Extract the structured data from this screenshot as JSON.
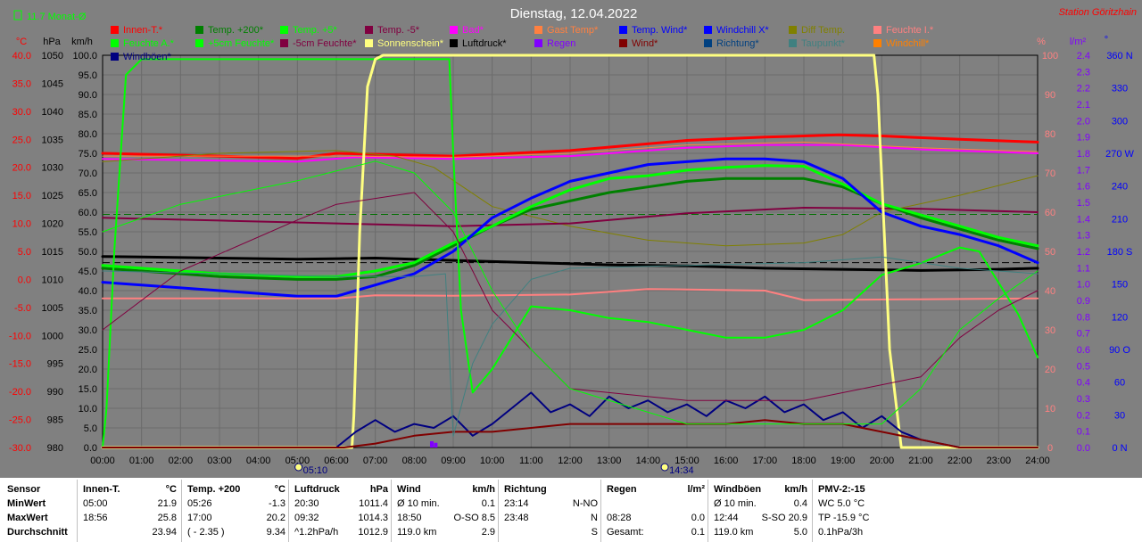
{
  "chart_data": {
    "type": "line",
    "title": "Dienstag, 12.04.2022",
    "station": "Station Göritzhain",
    "month_avg": "11.7 Monat-Ø",
    "axes": {
      "temp": {
        "label": "°C",
        "ticks": [
          "40.0",
          "35.0",
          "30.0",
          "25.0",
          "20.0",
          "15.0",
          "10.0",
          "5.0",
          "0.0",
          "-5.0",
          "-10.0",
          "-15.0",
          "-20.0",
          "-25.0",
          "-30.0"
        ],
        "range": [
          -30,
          40
        ]
      },
      "pressure": {
        "label": "hPa",
        "ticks": [
          "1050",
          "1045",
          "1040",
          "1035",
          "1030",
          "1025",
          "1020",
          "1015",
          "1010",
          "1005",
          "1000",
          "995",
          "990",
          "985",
          "980"
        ],
        "range": [
          980,
          1050
        ]
      },
      "wind": {
        "label": "km/h",
        "ticks": [
          "100.0",
          "95.0",
          "90.0",
          "85.0",
          "80.0",
          "75.0",
          "70.0",
          "65.0",
          "60.0",
          "55.0",
          "50.0",
          "45.0",
          "40.0",
          "35.0",
          "30.0",
          "25.0",
          "20.0",
          "15.0",
          "10.0",
          "5.0",
          "0.0"
        ],
        "range": [
          0,
          100
        ]
      },
      "humidity": {
        "label": "%",
        "ticks": [
          "100",
          "90",
          "80",
          "70",
          "60",
          "50",
          "40",
          "30",
          "20",
          "10",
          "0"
        ],
        "range": [
          0,
          100
        ]
      },
      "rain": {
        "label": "l/m²",
        "ticks": [
          "2.4",
          "2.3",
          "2.2",
          "2.1",
          "2.0",
          "1.9",
          "1.8",
          "1.7",
          "1.6",
          "1.5",
          "1.4",
          "1.3",
          "1.2",
          "1.1",
          "1.0",
          "0.9",
          "0.8",
          "0.7",
          "0.6",
          "0.5",
          "0.4",
          "0.3",
          "0.2",
          "0.1",
          "0.0"
        ],
        "range": [
          0,
          2.5
        ]
      },
      "direction": {
        "label": "°",
        "ticks": [
          "360 N",
          "330",
          "300",
          "270 W",
          "240",
          "210",
          "180 S",
          "150",
          "120",
          "90 O",
          "60",
          "30",
          "0 N"
        ],
        "range": [
          0,
          360
        ]
      },
      "time": {
        "ticks": [
          "00:00",
          "01:00",
          "02:00",
          "03:00",
          "04:00",
          "05:00",
          "06:00",
          "07:00",
          "08:00",
          "09:00",
          "10:00",
          "11:00",
          "12:00",
          "13:00",
          "14:00",
          "15:00",
          "16:00",
          "17:00",
          "18:00",
          "19:00",
          "20:00",
          "21:00",
          "22:00",
          "23:00",
          "24:00"
        ],
        "range": [
          0,
          24
        ]
      }
    },
    "sunrise": "05:10",
    "sunset": "14:34",
    "legend": [
      {
        "name": "Innen-T.*",
        "color": "#ff0000"
      },
      {
        "name": "Temp. +200*",
        "color": "#008000"
      },
      {
        "name": "Temp. +5*",
        "color": "#00ff00"
      },
      {
        "name": "Temp. -5*",
        "color": "#800040"
      },
      {
        "name": "Bad*",
        "color": "#ff00ff"
      },
      {
        "name": "Gast Temp*",
        "color": "#ff8040"
      },
      {
        "name": "Temp. Wind*",
        "color": "#0000ff"
      },
      {
        "name": "Windchill X*",
        "color": "#0000ff"
      },
      {
        "name": "Diff Temp.",
        "color": "#808000"
      },
      {
        "name": "Feuchte I.*",
        "color": "#ff8080"
      },
      {
        "name": "Feuchte A.*",
        "color": "#00ff00"
      },
      {
        "name": "+5cm Feuchte*",
        "color": "#00ff00"
      },
      {
        "name": "-5cm Feuchte*",
        "color": "#800040"
      },
      {
        "name": "Sonnenschein*",
        "color": "#ffff80"
      },
      {
        "name": "Luftdruck*",
        "color": "#000000"
      },
      {
        "name": "Regen",
        "color": "#8000ff"
      },
      {
        "name": "Wind*",
        "color": "#800000"
      },
      {
        "name": "Richtung*",
        "color": "#004080"
      },
      {
        "name": "Taupunkt*",
        "color": "#408080"
      },
      {
        "name": "Windchill*",
        "color": "#ff8000"
      },
      {
        "name": "Windböen*",
        "color": "#000080"
      }
    ],
    "series": [
      {
        "name": "Innen-T.*",
        "axis": "temp",
        "color": "#ff0000",
        "width": 3,
        "t": [
          0,
          3,
          5,
          6,
          9,
          12,
          15,
          17,
          18.9,
          20,
          22,
          24
        ],
        "y": [
          22.5,
          22.0,
          21.6,
          22.5,
          22.0,
          23.0,
          24.8,
          25.4,
          25.8,
          25.6,
          25.0,
          24.5
        ]
      },
      {
        "name": "Bad*",
        "color": "#ff00ff",
        "axis": "temp",
        "width": 2,
        "t": [
          0,
          5,
          6.5,
          9,
          12,
          15,
          17,
          19,
          21,
          24
        ],
        "y": [
          21.5,
          21.0,
          21.8,
          21.5,
          22.0,
          23.5,
          24.0,
          24.0,
          23.2,
          22.5
        ]
      },
      {
        "name": "Gast Temp*",
        "color": "#ff8040",
        "axis": "temp",
        "width": 1,
        "t": [
          0,
          6,
          9,
          12,
          15,
          18,
          21,
          24
        ],
        "y": [
          22.0,
          22.0,
          21.8,
          22.5,
          24.0,
          24.5,
          23.5,
          22.8
        ]
      },
      {
        "name": "Diff Temp.",
        "color": "#808000",
        "axis": "temp",
        "width": 1,
        "t": [
          0,
          3,
          6,
          7.5,
          8.5,
          10,
          12,
          14,
          16,
          18,
          19,
          20,
          22,
          24
        ],
        "y": [
          21.0,
          22.5,
          23.0,
          22.0,
          20.0,
          13.0,
          9.5,
          7.0,
          6.0,
          6.5,
          8.0,
          12.0,
          15.0,
          18.5
        ]
      },
      {
        "name": "Temp. -5*",
        "color": "#800040",
        "axis": "temp",
        "width": 2,
        "t": [
          0,
          3,
          6,
          9,
          12,
          15,
          18,
          21,
          24
        ],
        "y": [
          11.0,
          10.5,
          10.0,
          9.5,
          10.0,
          11.8,
          12.8,
          12.6,
          12.0
        ]
      },
      {
        "name": "Luftdruck*",
        "color": "#000000",
        "axis": "pressure",
        "width": 3,
        "t": [
          0,
          1,
          3,
          5,
          7,
          9,
          11,
          13,
          15,
          17,
          19,
          21,
          23,
          24
        ],
        "y": [
          1014.1,
          1014.0,
          1013.8,
          1013.6,
          1013.8,
          1013.4,
          1013.0,
          1012.6,
          1012.4,
          1012.0,
          1011.8,
          1011.6,
          1011.8,
          1012.0
        ]
      },
      {
        "name": "Temp. +200*",
        "color": "#008000",
        "axis": "temp",
        "width": 3,
        "t": [
          0,
          1,
          3,
          5,
          6,
          7,
          8,
          9,
          10,
          11,
          12,
          13,
          14,
          15,
          16,
          17,
          18,
          19,
          20,
          21,
          22,
          23,
          24
        ],
        "y": [
          2.0,
          1.5,
          0.5,
          0.0,
          0.0,
          0.5,
          2.5,
          6.0,
          9.5,
          12.5,
          14.0,
          15.5,
          16.5,
          17.5,
          18.0,
          18.0,
          18.0,
          16.5,
          13.5,
          11.0,
          9.0,
          7.0,
          5.5
        ]
      },
      {
        "name": "Temp. +5*",
        "color": "#00ff00",
        "axis": "temp",
        "width": 3,
        "t": [
          0,
          1,
          3,
          5,
          6,
          7,
          8,
          9,
          10,
          11,
          12,
          13,
          14,
          15,
          16,
          17,
          18,
          19,
          20,
          21,
          22,
          23,
          24
        ],
        "y": [
          2.5,
          2.0,
          1.0,
          0.5,
          0.5,
          1.5,
          3.0,
          6.5,
          9.5,
          13.0,
          16.0,
          18.0,
          18.5,
          19.5,
          20.0,
          20.3,
          20.2,
          17.0,
          13.5,
          11.5,
          9.5,
          7.5,
          6.0
        ]
      },
      {
        "name": "Temp. Wind*",
        "color": "#0000ff",
        "axis": "temp",
        "width": 3,
        "t": [
          0,
          1,
          3,
          5,
          6,
          6.5,
          7,
          8,
          9,
          10,
          11,
          12,
          13,
          14,
          15,
          16,
          17,
          18,
          19,
          19.5,
          20,
          21,
          22,
          23,
          24
        ],
        "y": [
          -0.5,
          -1.0,
          -2.0,
          -3.0,
          -3.0,
          -2.0,
          -1.0,
          1.0,
          5.0,
          11.0,
          14.5,
          17.5,
          19.0,
          20.5,
          21.0,
          21.5,
          21.5,
          21.0,
          18.0,
          15.0,
          12.0,
          9.5,
          8.0,
          6.0,
          3.0
        ]
      },
      {
        "name": "Feuchte I.*",
        "color": "#ff8080",
        "axis": "humidity",
        "width": 2,
        "t": [
          0,
          6,
          7,
          9,
          12,
          14,
          15,
          17,
          18,
          21,
          24
        ],
        "y": [
          38.0,
          38.0,
          38.8,
          38.7,
          39.0,
          40.4,
          40.3,
          40.0,
          37.6,
          37.8,
          38.0
        ]
      },
      {
        "name": "Feuchte A.*",
        "color": "#00ff00",
        "axis": "humidity",
        "width": 2,
        "t": [
          0,
          0.1,
          0.3,
          0.5,
          0.6,
          1.0,
          1.5,
          8.9,
          9.0,
          9.2,
          9.5,
          10,
          11,
          12,
          13,
          14,
          15,
          16,
          17,
          18,
          19,
          20,
          21,
          22,
          22.5,
          23,
          23.5,
          24
        ],
        "y": [
          0,
          10,
          50,
          80,
          95,
          99,
          99,
          99,
          75,
          35,
          14,
          20,
          36,
          35,
          33,
          32,
          30,
          28,
          28,
          30,
          35,
          44,
          47,
          51,
          50,
          42,
          34,
          23
        ]
      },
      {
        "name": "Sonnenschein*",
        "color": "#ffff80",
        "axis": "humidity",
        "width": 3,
        "t": [
          0,
          6.4,
          6.45,
          6.6,
          6.8,
          7.0,
          7.2,
          19.8,
          19.9,
          20.2,
          20.5,
          24
        ],
        "y": [
          0,
          0,
          8,
          55,
          92,
          99,
          100,
          100,
          90,
          25,
          0,
          0
        ]
      },
      {
        "name": "Windböen*",
        "color": "#000080",
        "axis": "wind",
        "width": 2,
        "t": [
          0,
          6,
          6.5,
          7,
          7.5,
          8,
          8.5,
          9,
          9.5,
          10,
          10.5,
          11,
          11.5,
          12,
          12.5,
          13,
          13.5,
          14,
          14.5,
          15,
          15.5,
          16,
          16.5,
          17,
          17.5,
          18,
          18.5,
          19,
          19.5,
          20,
          20.5,
          21,
          22,
          24
        ],
        "y": [
          0,
          0,
          4,
          7,
          4,
          6,
          5,
          8,
          3,
          6,
          10,
          14,
          9,
          11,
          8,
          13,
          10,
          12,
          9,
          11,
          8,
          12,
          10,
          13,
          9,
          11,
          7,
          9,
          5,
          8,
          4,
          2,
          0,
          0
        ]
      },
      {
        "name": "Wind*",
        "color": "#800000",
        "axis": "wind",
        "width": 2,
        "t": [
          0,
          6.2,
          7,
          8,
          9,
          10,
          11,
          12,
          13,
          14,
          15,
          16,
          17,
          18,
          19,
          20,
          21,
          22,
          24
        ],
        "y": [
          0,
          0,
          1,
          3,
          4,
          4,
          5,
          6,
          6,
          6,
          6,
          6,
          7,
          6,
          6,
          4,
          2,
          0,
          0
        ]
      },
      {
        "name": "-5cm Feuchte*",
        "color": "#800040",
        "axis": "humidity",
        "width": 1,
        "t": [
          0,
          2,
          5,
          6,
          8,
          9,
          10,
          11,
          12,
          15,
          18,
          21,
          22,
          23,
          24
        ],
        "y": [
          30,
          45,
          58,
          62,
          65,
          55,
          35,
          25,
          15,
          12,
          12,
          18,
          28,
          35,
          40
        ]
      },
      {
        "name": "+5cm Feuchte*",
        "color": "#00ff00",
        "axis": "humidity",
        "width": 1,
        "t": [
          0,
          2,
          5,
          7,
          8,
          9,
          10,
          11,
          12,
          15,
          18,
          20,
          21,
          22,
          23,
          24
        ],
        "y": [
          55,
          62,
          68,
          73,
          70,
          60,
          40,
          25,
          15,
          6,
          6,
          6,
          15,
          30,
          38,
          45
        ]
      },
      {
        "name": "Taupunkt*",
        "color": "#408080",
        "axis": "temp",
        "width": 1,
        "t": [
          0,
          3,
          6,
          8,
          8.8,
          9,
          9.5,
          10,
          11,
          12,
          15,
          18,
          20,
          22,
          24
        ],
        "y": [
          1.5,
          1.0,
          0.5,
          0.5,
          1.0,
          -28.0,
          -15.0,
          -8.0,
          0.0,
          2.0,
          2.5,
          3.0,
          4.0,
          2.0,
          1.0
        ]
      }
    ],
    "rain_bars": [
      {
        "t": 8.45,
        "y": 0.04
      },
      {
        "t": 8.55,
        "y": 0.03
      }
    ],
    "reference_lines": [
      {
        "axis": "temp",
        "y": 11.6,
        "color": "#007000"
      },
      {
        "axis": "pressure",
        "y": 1013.0,
        "color": "#000000"
      }
    ]
  },
  "stats": {
    "row_labels": [
      "Sensor",
      "MinWert",
      "MaxWert",
      "Durchschnitt"
    ],
    "groups": [
      {
        "title": "Innen-T.",
        "unit": "°C",
        "rows": [
          [
            "05:00",
            "21.9"
          ],
          [
            "18:56",
            "25.8"
          ],
          [
            "",
            "23.94"
          ]
        ]
      },
      {
        "title": "Temp. +200",
        "unit": "°C",
        "rows": [
          [
            "05:26",
            "-1.3"
          ],
          [
            "17:00",
            "20.2"
          ],
          [
            "( - 2.35 )",
            "9.34"
          ]
        ]
      },
      {
        "title": "Luftdruck",
        "unit": "hPa",
        "rows": [
          [
            "20:30",
            "1011.4"
          ],
          [
            "09:32",
            "1014.3"
          ],
          [
            "^1.2hPa/h",
            "1012.9"
          ]
        ]
      },
      {
        "title": "Wind",
        "unit": "km/h",
        "rows": [
          [
            "Ø 10 min.",
            "0.1"
          ],
          [
            "18:50",
            "O-SO 8.5"
          ],
          [
            "119.0 km",
            "2.9"
          ]
        ]
      },
      {
        "title": "Richtung",
        "unit": "",
        "rows": [
          [
            "23:14",
            "N-NO"
          ],
          [
            "23:48",
            "N"
          ],
          [
            "",
            "S"
          ]
        ]
      },
      {
        "title": "Regen",
        "unit": "l/m²",
        "rows": [
          [
            "",
            ""
          ],
          [
            "08:28",
            "0.0"
          ],
          [
            "Gesamt:",
            "0.1"
          ]
        ]
      },
      {
        "title": "Windböen",
        "unit": "km/h",
        "rows": [
          [
            "Ø 10 min.",
            "0.4"
          ],
          [
            "12:44",
            "S-SO 20.9"
          ],
          [
            "119.0 km",
            "5.0"
          ]
        ]
      },
      {
        "title": "PMV-2:-15",
        "unit": "",
        "rows": [
          [
            "WC 5.0 °C",
            ""
          ],
          [
            "TP -15.9 °C",
            ""
          ],
          [
            "0.1hPa/3h",
            ""
          ]
        ]
      }
    ]
  }
}
